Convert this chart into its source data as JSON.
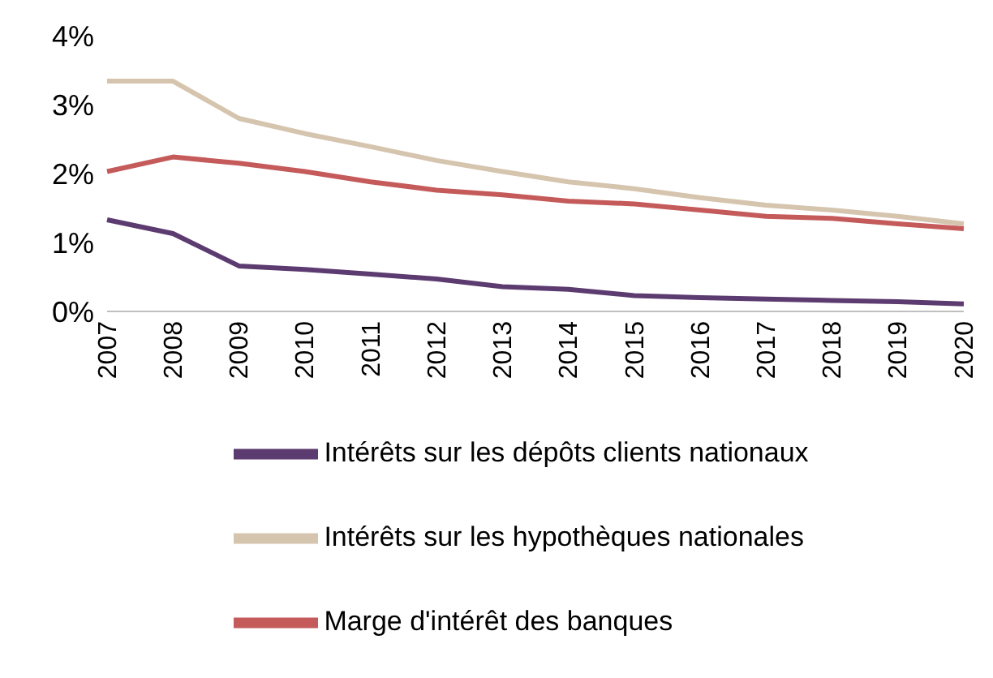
{
  "chart_data": {
    "type": "line",
    "categories": [
      "2007",
      "2008",
      "2009",
      "2010",
      "2011",
      "2012",
      "2013",
      "2014",
      "2015",
      "2016",
      "2017",
      "2018",
      "2019",
      "2020"
    ],
    "series": [
      {
        "name": "Intérêts sur les hypothèques nationales",
        "color": "#d6c5ae",
        "values": [
          3.34,
          3.34,
          2.8,
          2.58,
          2.39,
          2.19,
          2.03,
          1.88,
          1.78,
          1.65,
          1.54,
          1.47,
          1.38,
          1.27
        ]
      },
      {
        "name": "Intérêts sur les dépôts clients nationaux",
        "color": "#5c3b70",
        "values": [
          1.33,
          1.13,
          0.66,
          0.61,
          0.54,
          0.47,
          0.36,
          0.32,
          0.23,
          0.2,
          0.18,
          0.16,
          0.14,
          0.11
        ]
      },
      {
        "name": "Marge d'intérêt des banques",
        "color": "#c55a5a",
        "values": [
          2.03,
          2.24,
          2.15,
          2.03,
          1.88,
          1.76,
          1.69,
          1.6,
          1.56,
          1.47,
          1.38,
          1.35,
          1.27,
          1.2
        ]
      }
    ],
    "ylim": [
      0,
      4
    ],
    "yticks": [
      {
        "value": 0,
        "label": "0%"
      },
      {
        "value": 1,
        "label": "1%"
      },
      {
        "value": 2,
        "label": "2%"
      },
      {
        "value": 3,
        "label": "3%"
      },
      {
        "value": 4,
        "label": "4%"
      }
    ],
    "grid": false,
    "legend": "bottom",
    "marker": "none",
    "line_style": "solid"
  }
}
